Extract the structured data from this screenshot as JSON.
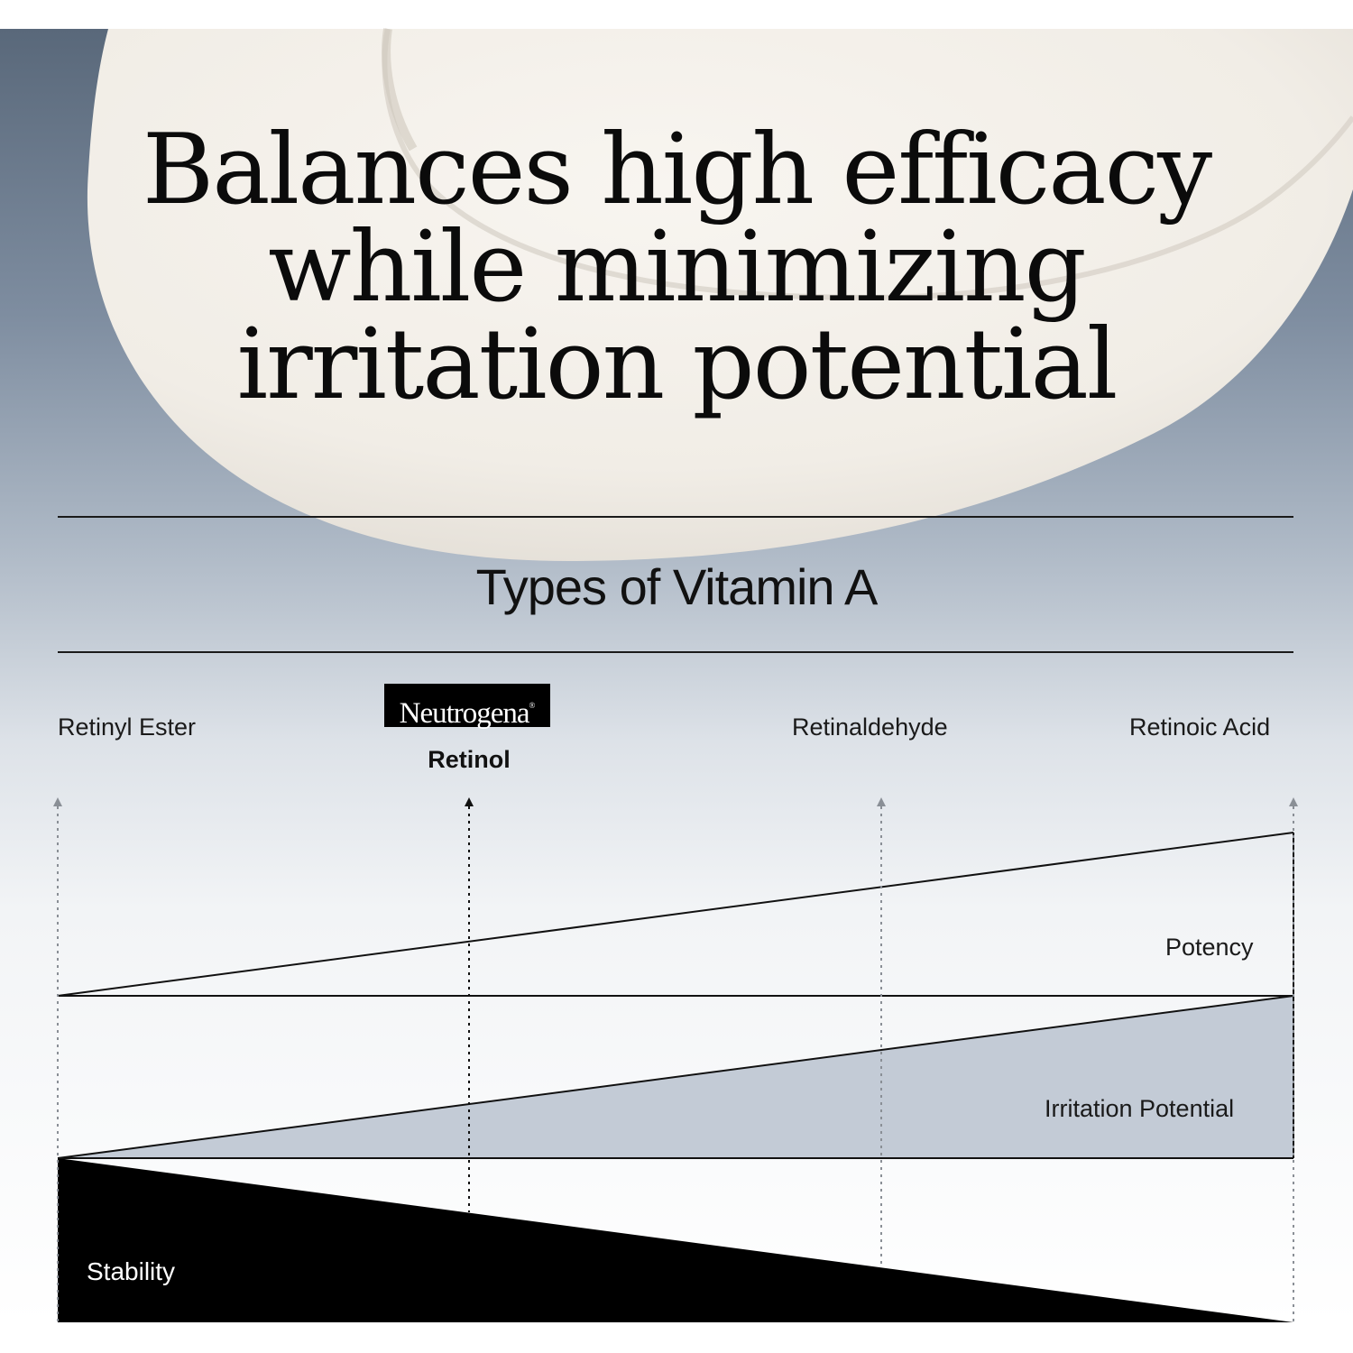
{
  "headline": {
    "line1": "Balances high efficacy",
    "line2": "while minimizing",
    "line3": "irritation potential"
  },
  "section_title": "Types of Vitamin A",
  "types": [
    {
      "label": "Retinyl Ester"
    },
    {
      "label": "Retinol",
      "brand": "Neutrogena",
      "highlighted": true
    },
    {
      "label": "Retinaldehyde"
    },
    {
      "label": "Retinoic Acid"
    }
  ],
  "bands": {
    "potency": "Potency",
    "irritation": "Irritation Potential",
    "stability": "Stability"
  },
  "colors": {
    "background_dark": "#6d7e91",
    "cream": "#f3efe9",
    "irritation_fill": "#c3cbd6",
    "stability_fill": "#000000",
    "text": "#111111"
  },
  "icons": {
    "marker": "arrow-up-icon",
    "logo": "neutrogena-logo"
  }
}
